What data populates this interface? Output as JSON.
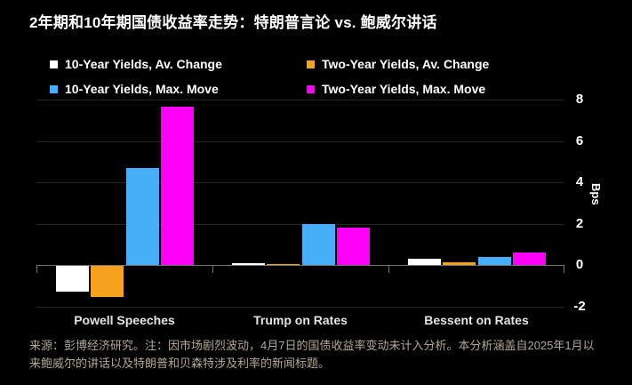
{
  "title": "2年期和10年期国债收益率走势：特朗普言论 vs. 鲍威尔讲话",
  "colors": {
    "background": "#000000",
    "grid": "#242424",
    "axis": "#757575",
    "white_series": "#ffffff",
    "orange_series": "#f7a21c",
    "blue_series": "#47aef9",
    "magenta_series": "#fb00f5",
    "tick_label": "#ffffff",
    "category_label": "#e3e3e3",
    "footer_text": "#b3a893"
  },
  "legend": [
    {
      "label": "10-Year Yields, Av. Change",
      "color": "#ffffff"
    },
    {
      "label": "Two-Year Yields, Av. Change",
      "color": "#f7a21c"
    },
    {
      "label": "10-Year Yields, Max. Move",
      "color": "#47aef9"
    },
    {
      "label": "Two-Year Yields, Max. Move",
      "color": "#fb00f5"
    }
  ],
  "chart_data": {
    "type": "bar",
    "categories": [
      "Powell Speeches",
      "Trump on Rates",
      "Bessent on Rates"
    ],
    "series": [
      {
        "name": "10-Year Yields, Av. Change",
        "color": "#ffffff",
        "values": [
          -1.25,
          0.1,
          0.3
        ]
      },
      {
        "name": "Two-Year Yields, Av. Change",
        "color": "#f7a21c",
        "values": [
          -1.5,
          0.05,
          0.15
        ]
      },
      {
        "name": "10-Year Yields, Max. Move",
        "color": "#47aef9",
        "values": [
          4.7,
          2.0,
          0.4
        ]
      },
      {
        "name": "Two-Year Yields, Max. Move",
        "color": "#fb00f5",
        "values": [
          7.65,
          1.8,
          0.6
        ]
      }
    ],
    "title": "2年期和10年期国债收益率走势：特朗普言论 vs. 鲍威尔讲话",
    "xlabel": "",
    "ylabel": "Bps",
    "yticks": [
      8,
      6,
      4,
      2,
      0,
      -2
    ],
    "ylim": [
      -2.4,
      8.35
    ],
    "grid": true,
    "legend_position": "top-left"
  },
  "footer": "来源：彭博经济研究。注：因市场剧烈波动，4月7日的国债收益率变动未计入分析。本分析涵盖自2025年1月以来鲍威尔的讲话以及特朗普和贝森特涉及利率的新闻标题。"
}
